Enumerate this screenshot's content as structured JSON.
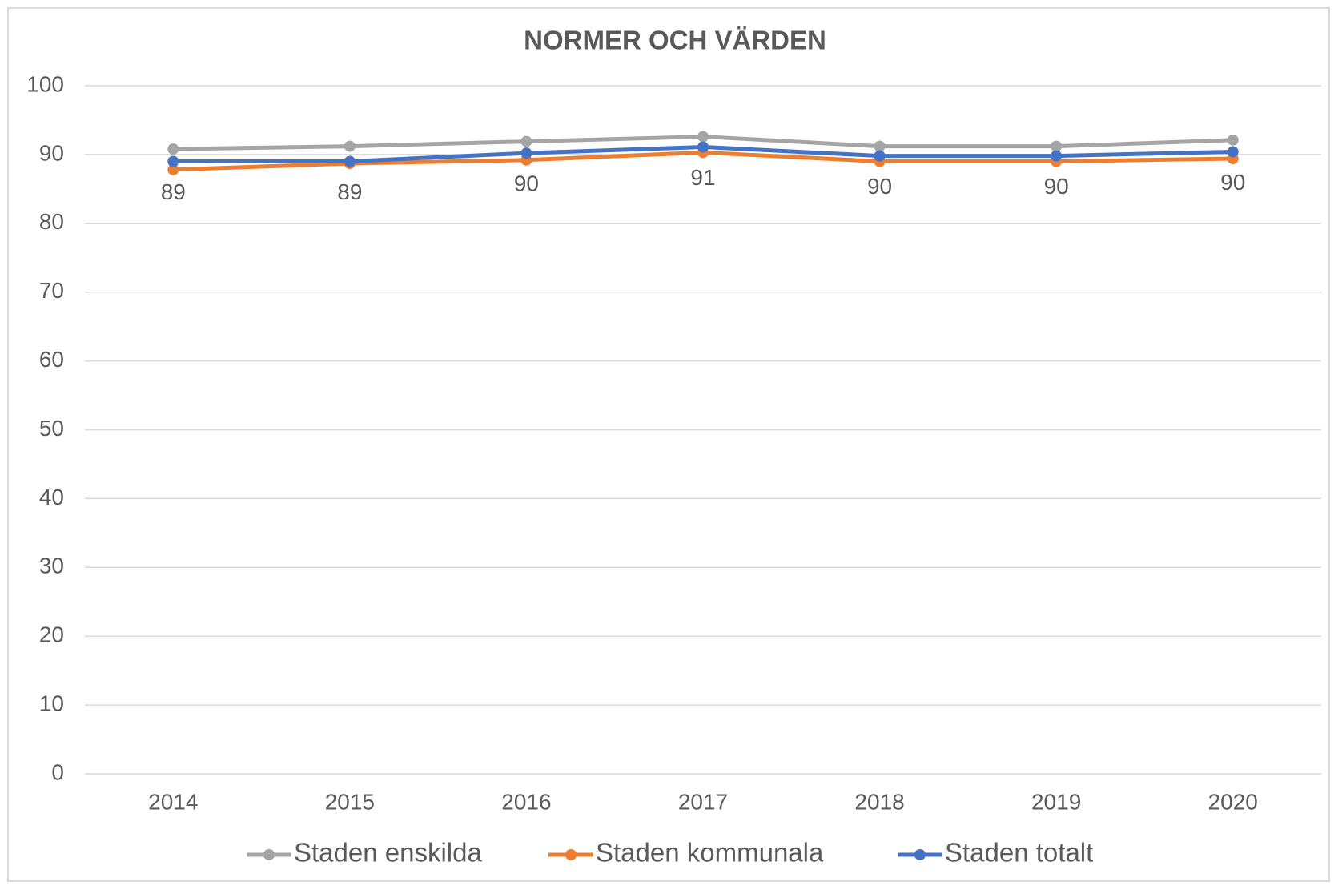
{
  "chart_data": {
    "type": "line",
    "title": "NORMER OCH VÄRDEN",
    "categories": [
      "2014",
      "2015",
      "2016",
      "2017",
      "2018",
      "2019",
      "2020"
    ],
    "series": [
      {
        "name": "Staden enskilda",
        "color": "#a5a5a5",
        "values": [
          90.8,
          91.2,
          91.9,
          92.6,
          91.2,
          91.2,
          92.1
        ]
      },
      {
        "name": "Staden kommunala",
        "color": "#ed7d31",
        "values": [
          87.8,
          88.7,
          89.2,
          90.3,
          89.0,
          89.0,
          89.4
        ]
      },
      {
        "name": "Staden totalt",
        "color": "#4472c4",
        "values": [
          89.0,
          89.0,
          90.2,
          91.1,
          89.8,
          89.8,
          90.4
        ],
        "value_labels": [
          "89",
          "89",
          "90",
          "91",
          "90",
          "90",
          "90"
        ]
      }
    ],
    "ylim": [
      0,
      100
    ],
    "yticks": [
      0,
      10,
      20,
      30,
      40,
      50,
      60,
      70,
      80,
      90,
      100
    ],
    "grid": true,
    "legend": "bottom"
  }
}
